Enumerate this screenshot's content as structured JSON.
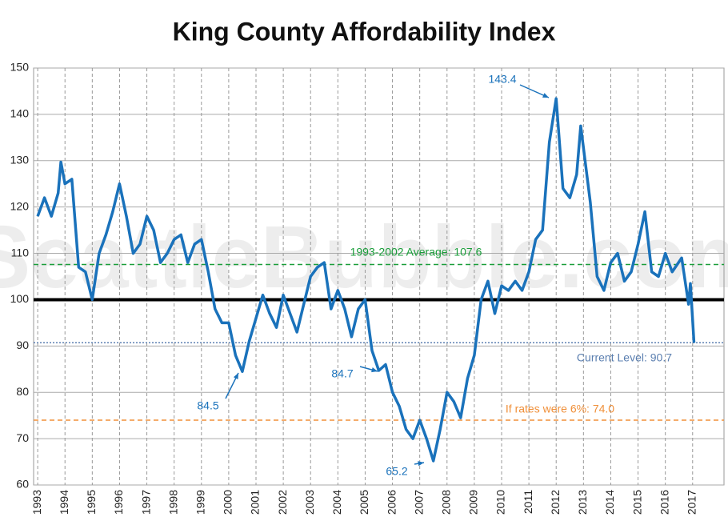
{
  "chart_data": {
    "type": "line",
    "title": "King County Affordability Index",
    "watermark": "SeattleBubble.com",
    "x": [
      1993.0,
      1993.25,
      1993.5,
      1993.75,
      1993.85,
      1994.0,
      1994.25,
      1994.5,
      1994.75,
      1995.0,
      1995.25,
      1995.5,
      1995.75,
      1996.0,
      1996.25,
      1996.5,
      1996.75,
      1997.0,
      1997.25,
      1997.5,
      1997.75,
      1998.0,
      1998.25,
      1998.5,
      1998.75,
      1999.0,
      1999.25,
      1999.5,
      1999.75,
      2000.0,
      2000.25,
      2000.5,
      2000.75,
      2001.0,
      2001.25,
      2001.5,
      2001.75,
      2002.0,
      2002.25,
      2002.5,
      2002.75,
      2003.0,
      2003.25,
      2003.5,
      2003.75,
      2004.0,
      2004.25,
      2004.5,
      2004.75,
      2005.0,
      2005.25,
      2005.5,
      2005.75,
      2006.0,
      2006.25,
      2006.5,
      2006.75,
      2007.0,
      2007.25,
      2007.5,
      2007.75,
      2008.0,
      2008.25,
      2008.5,
      2008.75,
      2009.0,
      2009.25,
      2009.5,
      2009.75,
      2010.0,
      2010.25,
      2010.5,
      2010.75,
      2011.0,
      2011.25,
      2011.5,
      2011.75,
      2012.0,
      2012.25,
      2012.5,
      2012.75,
      2012.9,
      2013.25,
      2013.5,
      2013.75,
      2014.0,
      2014.25,
      2014.5,
      2014.75,
      2015.0,
      2015.25,
      2015.5,
      2015.75,
      2016.0,
      2016.25,
      2016.6,
      2016.85,
      2016.92,
      2017.05
    ],
    "series": [
      {
        "name": "Affordability Index",
        "color": "#1a72bb",
        "values": [
          118,
          122,
          118,
          123,
          129.7,
          125,
          126,
          107,
          106,
          100,
          110,
          114,
          119,
          125,
          118,
          110,
          112,
          118,
          115,
          108,
          110,
          113,
          114,
          108,
          112,
          113,
          106,
          98,
          95,
          95,
          88,
          84.5,
          91,
          96,
          101,
          97,
          94,
          101,
          97,
          93,
          99,
          105,
          107,
          108,
          98,
          102,
          98,
          92,
          98,
          100,
          89,
          84.7,
          86,
          80,
          77,
          72,
          70,
          74,
          70,
          65.2,
          72,
          80,
          78,
          74.5,
          83,
          88,
          100,
          104,
          97,
          103,
          102,
          104,
          102,
          106,
          113,
          115,
          134,
          143.4,
          124,
          122,
          127,
          137.5,
          121,
          105,
          102,
          108,
          110,
          104,
          106,
          112,
          119,
          106,
          105,
          110,
          106,
          109,
          99,
          103.5,
          90.7
        ]
      }
    ],
    "reference_lines": [
      {
        "value": 100,
        "color": "#000000",
        "style": "solid"
      },
      {
        "value": 107.6,
        "label": "1993-2002 Average: 107.6",
        "color": "#1a9e3a",
        "style": "dashed"
      },
      {
        "value": 90.7,
        "label": "Current Level: 90.7",
        "color": "#5b7fb0",
        "style": "dotted"
      },
      {
        "value": 74.0,
        "label": "If rates were 6%: 74.0",
        "color": "#f0903a",
        "style": "dashed"
      }
    ],
    "annotations": [
      "143.4",
      "84.5",
      "84.7",
      "65.2"
    ],
    "xlim": [
      1992.85,
      2018.15
    ],
    "xticks": [
      1993,
      1994,
      1995,
      1996,
      1997,
      1998,
      1999,
      2000,
      2001,
      2002,
      2003,
      2004,
      2005,
      2006,
      2007,
      2008,
      2009,
      2010,
      2011,
      2012,
      2013,
      2014,
      2015,
      2016,
      2017
    ],
    "ylim": [
      60,
      150
    ],
    "yticks": [
      60,
      70,
      80,
      90,
      100,
      110,
      120,
      130,
      140,
      150
    ],
    "grid": true
  }
}
